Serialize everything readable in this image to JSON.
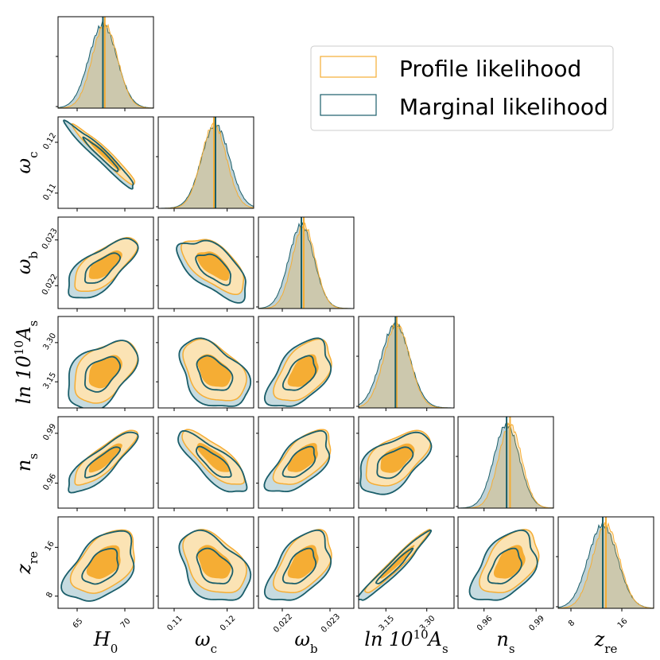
{
  "colors": {
    "profile": "#f5ad34",
    "profile_light": "#fbe3b4",
    "profile_mid": "#f9cc7a",
    "marginal": "#1a5e6a",
    "marginal_light": "#c6dbe0",
    "overlap": "#c9c49a"
  },
  "legend": {
    "profile_label": "Profile likelihood",
    "marginal_label": "Marginal likelihood",
    "placement": "top-right"
  },
  "chart_data": {
    "type": "corner",
    "title": "",
    "parameters": [
      {
        "key": "H0",
        "label": "H",
        "sub": "0",
        "sup": "",
        "range": [
          63,
          73
        ],
        "ticks": [
          65,
          70
        ],
        "tick_labels": [
          "65",
          "70"
        ],
        "profile_best": 67.9,
        "marginal_mean": 67.7,
        "sigma": 1.4
      },
      {
        "key": "wc",
        "label": "ω",
        "sub": "c",
        "sup": "",
        "range": [
          0.107,
          0.125
        ],
        "ticks": [
          0.11,
          0.12
        ],
        "tick_labels": [
          "0.11",
          "0.12"
        ],
        "profile_best": 0.1175,
        "marginal_mean": 0.1178,
        "sigma": 0.0025
      },
      {
        "key": "wb",
        "label": "ω",
        "sub": "b",
        "sup": "",
        "range": [
          0.0215,
          0.0235
        ],
        "ticks": [
          0.022,
          0.023
        ],
        "tick_labels": [
          "0.022",
          "0.023"
        ],
        "profile_best": 0.02245,
        "marginal_mean": 0.0224,
        "sigma": 0.00025
      },
      {
        "key": "lnAs",
        "label": "ln 10",
        "sub": "s",
        "sup": "10",
        "tail": "A",
        "range": [
          3.05,
          3.4
        ],
        "ticks": [
          3.15,
          3.3
        ],
        "tick_labels": [
          "3.15",
          "3.30"
        ],
        "profile_best": 3.19,
        "marginal_mean": 3.185,
        "sigma": 0.05
      },
      {
        "key": "ns",
        "label": "n",
        "sub": "s",
        "sup": "",
        "range": [
          0.945,
          1.0
        ],
        "ticks": [
          0.96,
          0.99
        ],
        "tick_labels": [
          "0.96",
          "0.99"
        ],
        "profile_best": 0.975,
        "marginal_mean": 0.973,
        "sigma": 0.007
      },
      {
        "key": "zre",
        "label": "z",
        "sub": "re",
        "sup": "",
        "range": [
          6,
          21
        ],
        "ticks": [
          8,
          16
        ],
        "tick_labels": [
          "8",
          "16"
        ],
        "profile_best": 13.5,
        "marginal_mean": 13.0,
        "sigma": 2.2
      }
    ],
    "y_tick_rows": {
      "wc": {
        "ticks": [
          0.11,
          0.12
        ],
        "tick_labels": [
          "0.11",
          "0.12"
        ]
      },
      "wb": {
        "ticks": [
          0.022,
          0.023
        ],
        "tick_labels": [
          "0.022",
          "0.023"
        ]
      },
      "lnAs": {
        "ticks": [
          3.15,
          3.3
        ],
        "tick_labels": [
          "3.15",
          "3.30"
        ]
      },
      "ns": {
        "ticks": [
          0.96,
          0.99
        ],
        "tick_labels": [
          "0.96",
          "0.99"
        ]
      },
      "zre": {
        "ticks": [
          8,
          16
        ],
        "tick_labels": [
          "8",
          "16"
        ]
      }
    },
    "correlations": {
      "wc|H0": -0.97,
      "wb|H0": 0.7,
      "wb|wc": -0.6,
      "lnAs|H0": 0.45,
      "lnAs|wc": -0.4,
      "lnAs|wb": 0.5,
      "ns|H0": 0.85,
      "ns|wc": -0.8,
      "ns|wb": 0.6,
      "ns|lnAs": 0.55,
      "zre|H0": 0.45,
      "zre|wc": -0.4,
      "zre|wb": 0.5,
      "zre|lnAs": 0.97,
      "zre|ns": 0.45
    }
  }
}
